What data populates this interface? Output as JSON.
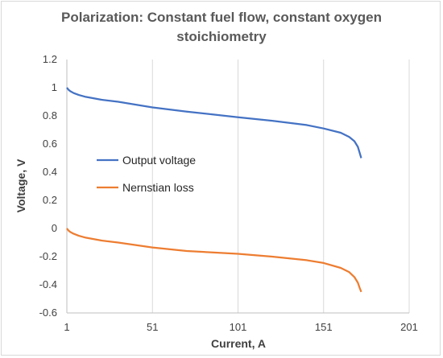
{
  "chart_data": {
    "type": "line",
    "title_line1": "Polarization: Constant fuel flow, constant oxygen",
    "title_line2": "stoichiometry",
    "xlabel": "Current, A",
    "ylabel": "Voltage, V",
    "xlim": [
      1,
      201
    ],
    "ylim": [
      -0.6,
      1.2
    ],
    "xticks": [
      "1",
      "51",
      "101",
      "151",
      "201"
    ],
    "yticks": [
      "1.2",
      "1",
      "0.8",
      "0.6",
      "0.4",
      "0.2",
      "0",
      "-0.2",
      "-0.4",
      "-0.6"
    ],
    "grid": "vertical",
    "legend": "left-middle",
    "series": [
      {
        "name": "Output voltage",
        "color": "#4472C4",
        "x": [
          1,
          2,
          3,
          5,
          8,
          12,
          21,
          31,
          51,
          71,
          101,
          121,
          141,
          151,
          161,
          166,
          169,
          171,
          172,
          173
        ],
        "y": [
          1.0,
          0.985,
          0.975,
          0.962,
          0.948,
          0.935,
          0.915,
          0.9,
          0.86,
          0.83,
          0.79,
          0.765,
          0.735,
          0.71,
          0.68,
          0.65,
          0.62,
          0.58,
          0.54,
          0.5
        ]
      },
      {
        "name": "Nernstian loss",
        "color": "#ED7D31",
        "x": [
          1,
          2,
          3,
          5,
          8,
          12,
          21,
          31,
          51,
          71,
          101,
          121,
          141,
          151,
          161,
          166,
          169,
          171,
          172,
          173
        ],
        "y": [
          0.0,
          -0.015,
          -0.025,
          -0.038,
          -0.052,
          -0.065,
          -0.085,
          -0.1,
          -0.135,
          -0.16,
          -0.18,
          -0.2,
          -0.225,
          -0.245,
          -0.28,
          -0.31,
          -0.345,
          -0.385,
          -0.42,
          -0.45
        ]
      }
    ]
  }
}
